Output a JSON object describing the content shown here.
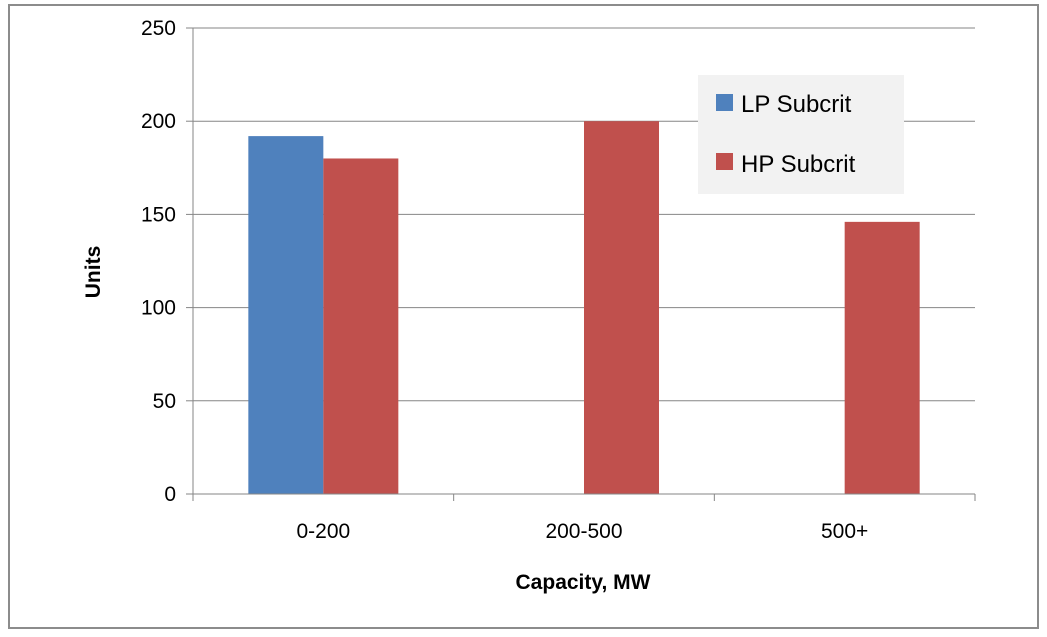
{
  "chart_data": {
    "type": "bar",
    "title": "",
    "xlabel": "Capacity, MW",
    "ylabel": "Units",
    "categories": [
      "0-200",
      "200-500",
      "500+"
    ],
    "series": [
      {
        "name": "LP Subcrit",
        "values": [
          192,
          0,
          0
        ],
        "color": "#4f81bd"
      },
      {
        "name": "HP Subcrit",
        "values": [
          180,
          200,
          146
        ],
        "color": "#c0504d"
      }
    ],
    "ylim": [
      0,
      250
    ],
    "yticks": [
      0,
      50,
      100,
      150,
      200,
      250
    ],
    "grid": true,
    "legend_position": "top-right"
  }
}
